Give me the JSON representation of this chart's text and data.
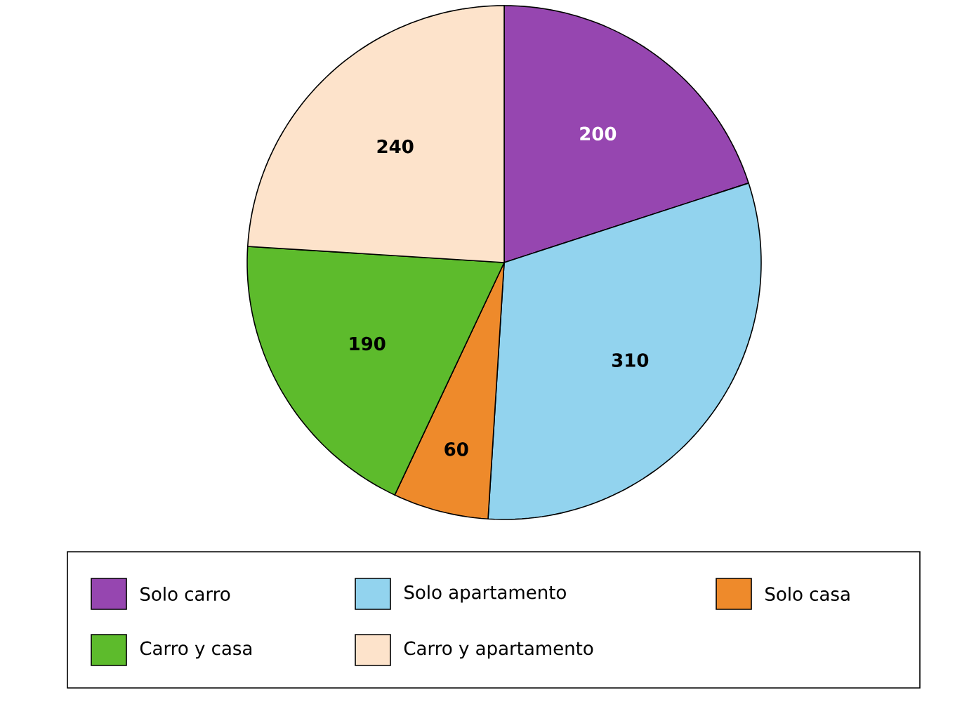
{
  "chart_data": {
    "type": "pie",
    "categories": [
      "Solo carro",
      "Solo apartamento",
      "Solo casa",
      "Carro y casa",
      "Carro y apartamento"
    ],
    "values": [
      200,
      310,
      60,
      190,
      240
    ],
    "colors": [
      "#9646b0",
      "#92d3ee",
      "#ee8a2b",
      "#5dbb2c",
      "#fde3cb"
    ],
    "data_labels": true,
    "legend": "bottom"
  }
}
